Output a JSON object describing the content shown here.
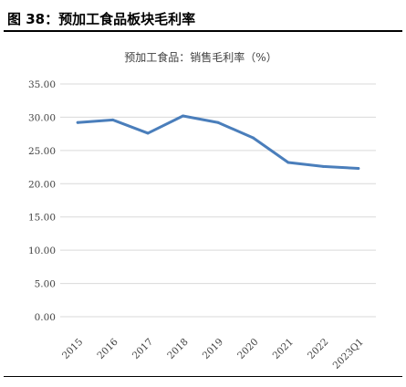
{
  "figure": {
    "title": "图 38：预加工食品板块毛利率"
  },
  "colors": {
    "series": "#4a7ebb",
    "grid": "#d9d9d9"
  },
  "chart_data": {
    "type": "line",
    "title": "预加工食品：销售毛利率（%）",
    "xlabel": "",
    "ylabel": "",
    "categories": [
      "2015",
      "2016",
      "2017",
      "2018",
      "2019",
      "2020",
      "2021",
      "2022",
      "2023Q1"
    ],
    "y_ticks": [
      "35.00",
      "30.00",
      "25.00",
      "20.00",
      "15.00",
      "10.00",
      "5.00",
      "0.00"
    ],
    "ylim": [
      0,
      35
    ],
    "grid": true,
    "legend": "none",
    "series": [
      {
        "values": [
          29.2,
          29.6,
          27.6,
          30.2,
          29.2,
          26.9,
          23.2,
          22.6,
          22.3
        ]
      }
    ]
  }
}
